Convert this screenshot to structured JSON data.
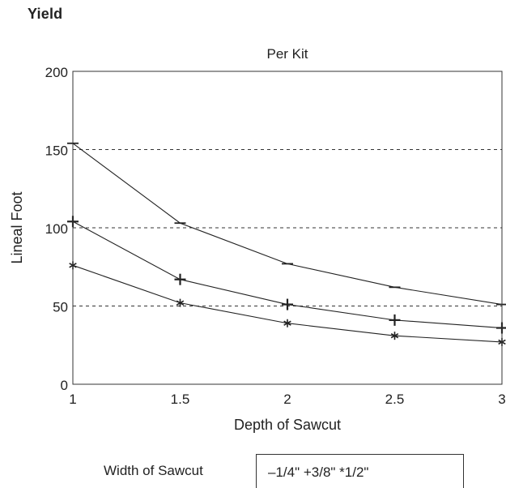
{
  "heading": "Yield",
  "chart_data": {
    "type": "line",
    "title": "Per Kit",
    "xlabel": "Depth of Sawcut",
    "ylabel": "Lineal Foot",
    "x": [
      1,
      1.5,
      2,
      2.5,
      3
    ],
    "x_ticks": [
      "1",
      "1.5",
      "2",
      "2.5",
      "3"
    ],
    "y_ticks": [
      "0",
      "50",
      "100",
      "150",
      "200"
    ],
    "xlim": [
      1,
      3
    ],
    "ylim": [
      0,
      200
    ],
    "grid": "dashed horizontal at 50, 100, 150",
    "series": [
      {
        "name": "1/4\"",
        "marker": "–",
        "values": [
          154,
          103,
          77,
          62,
          51
        ]
      },
      {
        "name": "3/8\"",
        "marker": "+",
        "values": [
          104,
          67,
          51,
          41,
          36
        ]
      },
      {
        "name": "1/2\"",
        "marker": "*",
        "values": [
          76,
          52,
          39,
          31,
          27
        ]
      }
    ],
    "legend": {
      "label": "Width of Sawcut",
      "text": "–1/4\" +3/8\" *1/2\"",
      "placement": "bottom"
    }
  }
}
